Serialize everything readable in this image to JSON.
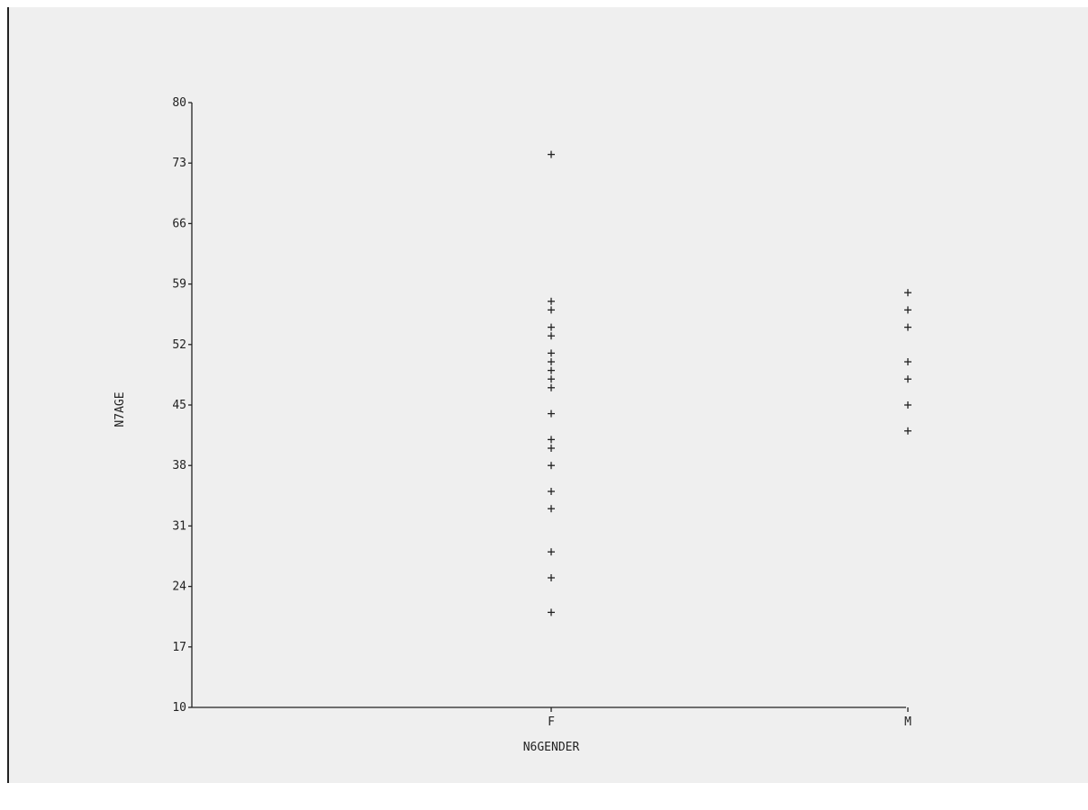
{
  "chart_data": {
    "type": "scatter",
    "xlabel": "N6GENDER",
    "ylabel": "N7AGE",
    "categories": [
      "F",
      "M"
    ],
    "yticks": [
      "10",
      "17",
      "24",
      "31",
      "38",
      "45",
      "52",
      "59",
      "66",
      "73",
      "80"
    ],
    "ylim": [
      10,
      80
    ],
    "grid": false,
    "marker": "plus",
    "series": [
      {
        "points": [
          {
            "x": "F",
            "y": 74
          },
          {
            "x": "F",
            "y": 57
          },
          {
            "x": "F",
            "y": 56
          },
          {
            "x": "F",
            "y": 54
          },
          {
            "x": "F",
            "y": 53
          },
          {
            "x": "F",
            "y": 51
          },
          {
            "x": "F",
            "y": 50
          },
          {
            "x": "F",
            "y": 49
          },
          {
            "x": "F",
            "y": 48
          },
          {
            "x": "F",
            "y": 47
          },
          {
            "x": "F",
            "y": 44
          },
          {
            "x": "F",
            "y": 41
          },
          {
            "x": "F",
            "y": 40
          },
          {
            "x": "F",
            "y": 38
          },
          {
            "x": "F",
            "y": 35
          },
          {
            "x": "F",
            "y": 33
          },
          {
            "x": "F",
            "y": 28
          },
          {
            "x": "F",
            "y": 25
          },
          {
            "x": "F",
            "y": 21
          },
          {
            "x": "M",
            "y": 58
          },
          {
            "x": "M",
            "y": 56
          },
          {
            "x": "M",
            "y": 54
          },
          {
            "x": "M",
            "y": 50
          },
          {
            "x": "M",
            "y": 48
          },
          {
            "x": "M",
            "y": 45
          },
          {
            "x": "M",
            "y": 42
          }
        ]
      }
    ]
  }
}
